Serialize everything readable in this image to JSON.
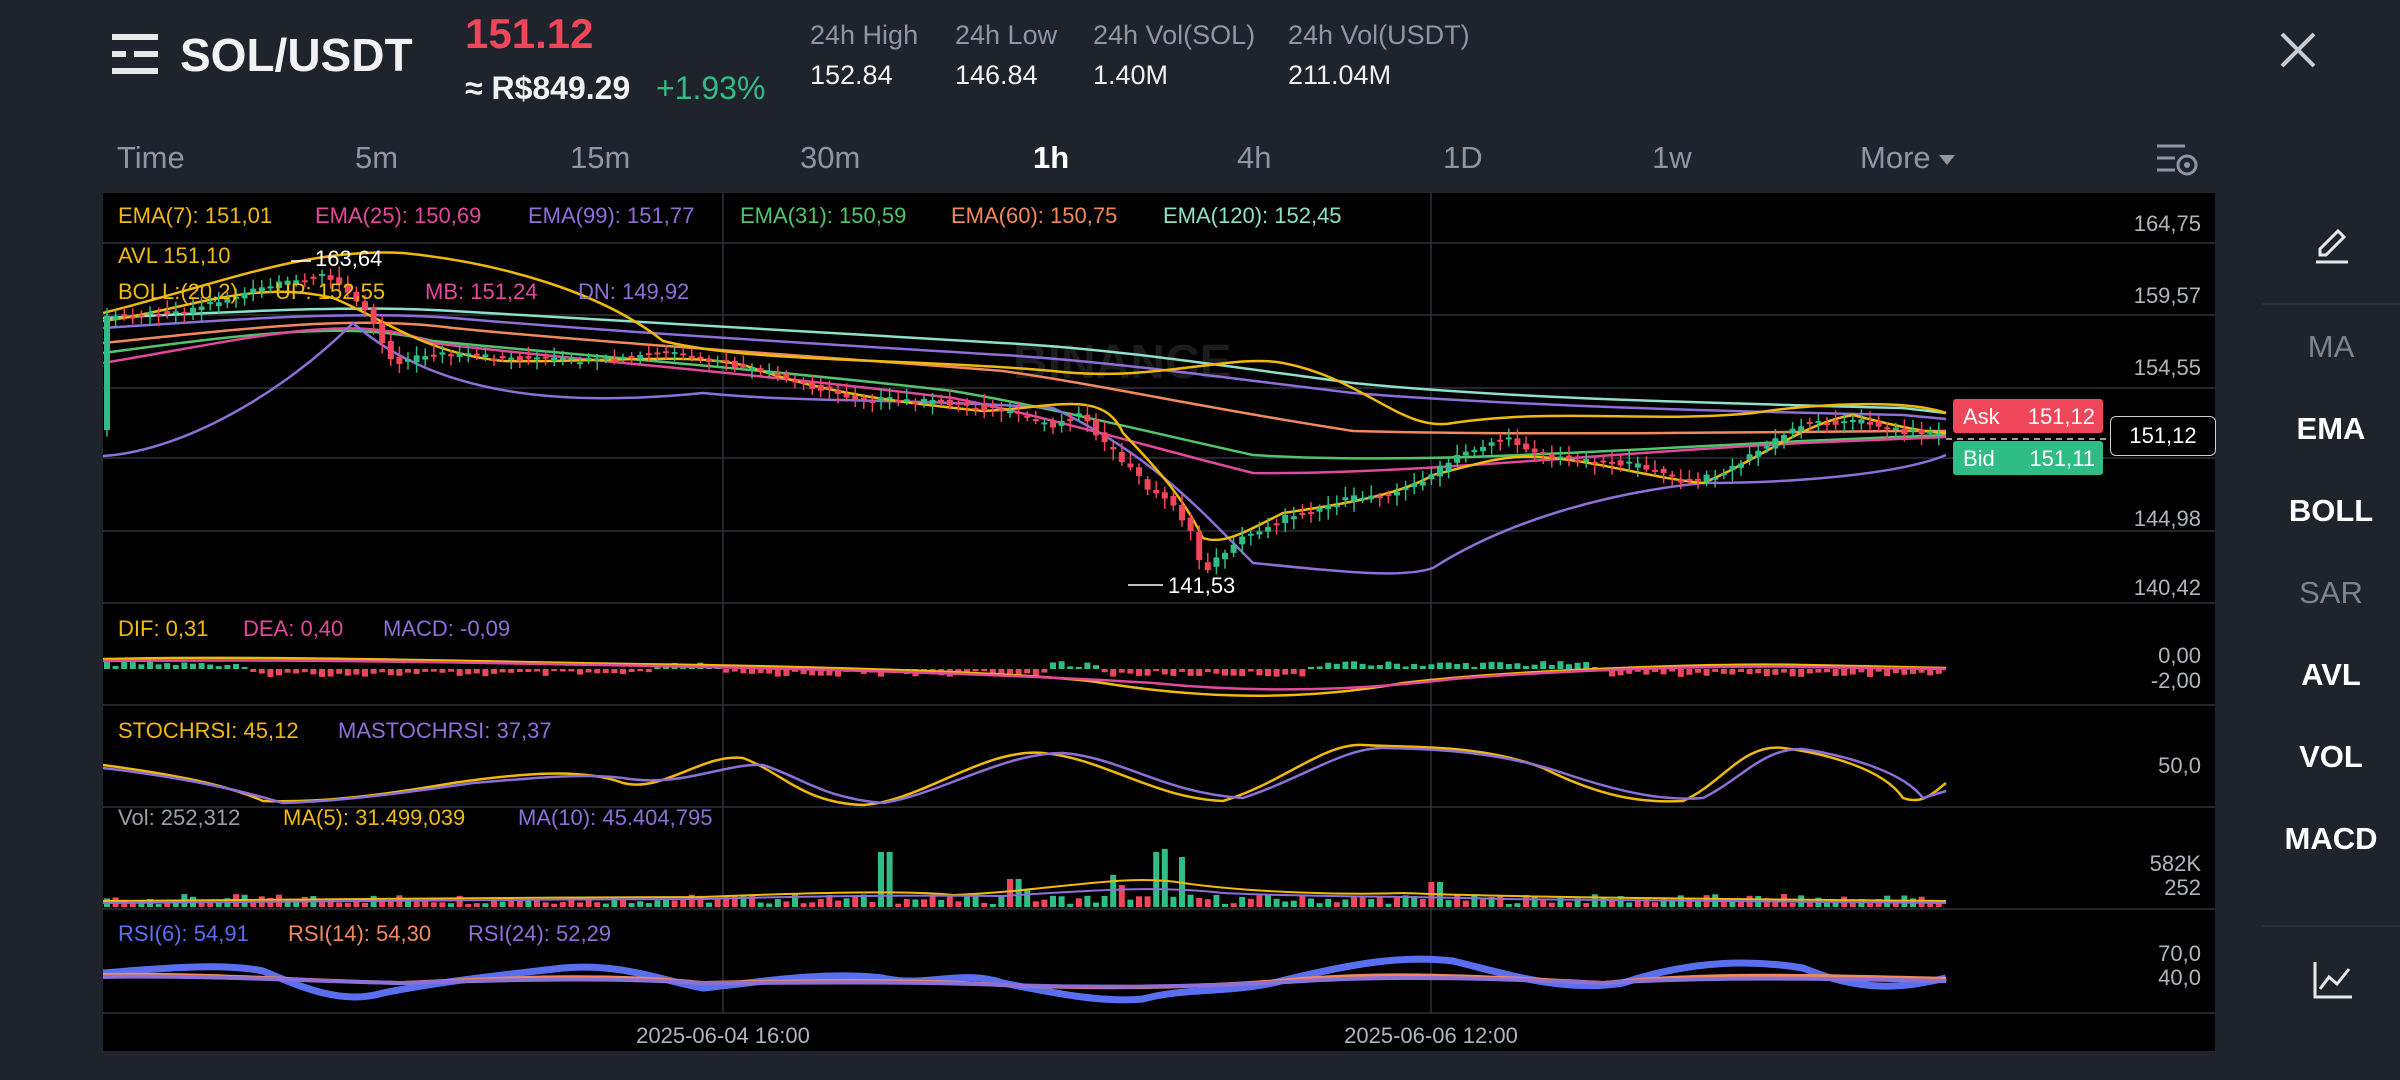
{
  "header": {
    "pair": "SOL/USDT",
    "last_price": "151.12",
    "fiat_price": "≈ R$849.29",
    "change_pct": "+1.93%",
    "stats": [
      {
        "label": "24h High",
        "value": "152.84"
      },
      {
        "label": "24h Low",
        "value": "146.84"
      },
      {
        "label": "24h Vol(SOL)",
        "value": "1.40M"
      },
      {
        "label": "24h Vol(USDT)",
        "value": "211.04M"
      }
    ]
  },
  "timeframes": [
    {
      "label": "Time",
      "active": false
    },
    {
      "label": "5m",
      "active": false
    },
    {
      "label": "15m",
      "active": false
    },
    {
      "label": "30m",
      "active": false
    },
    {
      "label": "1h",
      "active": true
    },
    {
      "label": "4h",
      "active": false
    },
    {
      "label": "1D",
      "active": false
    },
    {
      "label": "1w",
      "active": false
    },
    {
      "label": "More",
      "active": false
    }
  ],
  "colors": {
    "up": "#2fbd85",
    "down": "#f0465a",
    "yellow": "#f0b90b",
    "pink": "#e0499c",
    "purple": "#8d6fd8",
    "green": "#51c46c",
    "orange": "#f08a5d",
    "teal": "#8ee0c8",
    "blue": "#5a6ff0"
  },
  "main": {
    "ema_row": [
      {
        "label": "EMA(7): 151,01",
        "color": "#f0b90b"
      },
      {
        "label": "EMA(25): 150,69",
        "color": "#e0499c"
      },
      {
        "label": "EMA(99): 151,77",
        "color": "#8d6fd8"
      },
      {
        "label": "EMA(31): 150,59",
        "color": "#51c46c"
      },
      {
        "label": "EMA(60): 150,75",
        "color": "#f08a5d"
      },
      {
        "label": "EMA(120): 152,45",
        "color": "#8ee0c8"
      }
    ],
    "avl": "AVL 151,10",
    "boll_row": [
      {
        "label": "BOLL:(20,2)",
        "color": "#f0b90b"
      },
      {
        "label": "UP: 152,55",
        "color": "#f0b90b"
      },
      {
        "label": "MB: 151,24",
        "color": "#e0499c"
      },
      {
        "label": "DN: 149,92",
        "color": "#8d6fd8"
      }
    ],
    "high_marker": "163,64",
    "low_marker": "141,53",
    "watermark": "BINANCE",
    "y_ticks": [
      "164,75",
      "159,57",
      "154,55",
      "144,98",
      "140,42"
    ],
    "current_price": "151,12",
    "ask_label": "Ask",
    "ask_value": "151,12",
    "bid_label": "Bid",
    "bid_value": "151,11"
  },
  "macd": {
    "labels": [
      {
        "label": "DIF: 0,31",
        "color": "#f0b90b"
      },
      {
        "label": "DEA: 0,40",
        "color": "#e0499c"
      },
      {
        "label": "MACD: -0,09",
        "color": "#8d6fd8"
      }
    ],
    "ticks": [
      "0,00",
      "-2,00"
    ]
  },
  "stochrsi": {
    "labels": [
      {
        "label": "STOCHRSI: 45,12",
        "color": "#f0b90b"
      },
      {
        "label": "MASTOCHRSI: 37,37",
        "color": "#8d6fd8"
      }
    ],
    "ticks": [
      "50,0"
    ]
  },
  "volume": {
    "labels": [
      {
        "label": "Vol: 252,312",
        "color": "#9aa0aa"
      },
      {
        "label": "MA(5): 31.499,039",
        "color": "#f0b90b"
      },
      {
        "label": "MA(10): 45.404,795",
        "color": "#8d6fd8"
      }
    ],
    "ticks": [
      "582K",
      "252"
    ]
  },
  "rsi": {
    "labels": [
      {
        "label": "RSI(6): 54,91",
        "color": "#5a6ff0"
      },
      {
        "label": "RSI(14): 54,30",
        "color": "#f08a5d"
      },
      {
        "label": "RSI(24): 52,29",
        "color": "#8d6fd8"
      }
    ],
    "ticks": [
      "70,0",
      "40,0"
    ]
  },
  "x_ticks": [
    "2025-06-04 16:00",
    "2025-06-06 12:00"
  ],
  "side_panel": [
    {
      "label": "MA",
      "on": false
    },
    {
      "label": "EMA",
      "on": true
    },
    {
      "label": "BOLL",
      "on": true
    },
    {
      "label": "SAR",
      "on": false
    },
    {
      "label": "AVL",
      "on": true
    },
    {
      "label": "VOL",
      "on": true
    },
    {
      "label": "MACD",
      "on": true
    }
  ]
}
